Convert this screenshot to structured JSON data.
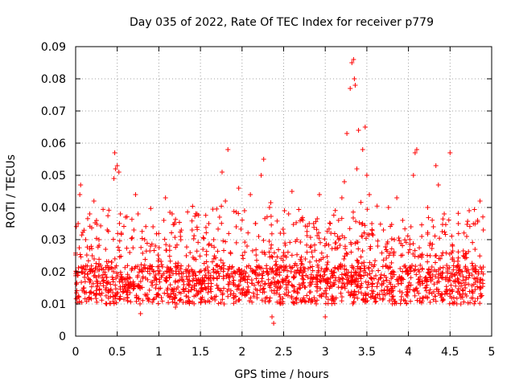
{
  "chart_data": {
    "type": "scatter",
    "title": "Day 035 of 2022, Rate Of TEC Index for receiver p779",
    "xlabel": "GPS time / hours",
    "ylabel": "ROTI / TECUs",
    "xlim": [
      0,
      5
    ],
    "ylim": [
      0,
      0.09
    ],
    "xticks": [
      0,
      0.5,
      1,
      1.5,
      2,
      2.5,
      3,
      3.5,
      4,
      4.5,
      5
    ],
    "xtick_labels": [
      "0",
      "0.5",
      "1",
      "1.5",
      "2",
      "2.5",
      "3",
      "3.5",
      "4",
      "4.5",
      "5"
    ],
    "yticks": [
      0,
      0.01,
      0.02,
      0.03,
      0.04,
      0.05,
      0.06,
      0.07,
      0.08,
      0.09
    ],
    "ytick_labels": [
      "0",
      "0.01",
      "0.02",
      "0.03",
      "0.04",
      "0.05",
      "0.06",
      "0.07",
      "0.08",
      "0.09"
    ],
    "grid": true,
    "marker": "+",
    "marker_color": "#ff0000",
    "series": [
      {
        "name": "ROTI",
        "points": [
          [
            0.02,
            0.012
          ],
          [
            0.03,
            0.035
          ],
          [
            0.05,
            0.044
          ],
          [
            0.06,
            0.047
          ],
          [
            0.08,
            0.02
          ],
          [
            0.1,
            0.015
          ],
          [
            0.12,
            0.03
          ],
          [
            0.15,
            0.018
          ],
          [
            0.17,
            0.038
          ],
          [
            0.2,
            0.025
          ],
          [
            0.22,
            0.042
          ],
          [
            0.25,
            0.013
          ],
          [
            0.28,
            0.03
          ],
          [
            0.3,
            0.022
          ],
          [
            0.33,
            0.017
          ],
          [
            0.36,
            0.027
          ],
          [
            0.38,
            0.033
          ],
          [
            0.4,
            0.014
          ],
          [
            0.43,
            0.023
          ],
          [
            0.46,
            0.049
          ],
          [
            0.47,
            0.057
          ],
          [
            0.48,
            0.052
          ],
          [
            0.5,
            0.053
          ],
          [
            0.52,
            0.051
          ],
          [
            0.55,
            0.032
          ],
          [
            0.57,
            0.018
          ],
          [
            0.6,
            0.037
          ],
          [
            0.62,
            0.012
          ],
          [
            0.65,
            0.026
          ],
          [
            0.68,
            0.021
          ],
          [
            0.7,
            0.033
          ],
          [
            0.72,
            0.044
          ],
          [
            0.75,
            0.038
          ],
          [
            0.78,
            0.007
          ],
          [
            0.8,
            0.02
          ],
          [
            0.83,
            0.03
          ],
          [
            0.86,
            0.013
          ],
          [
            0.9,
            0.028
          ],
          [
            0.93,
            0.034
          ],
          [
            0.96,
            0.019
          ],
          [
            1.0,
            0.024
          ],
          [
            1.03,
            0.012
          ],
          [
            1.06,
            0.036
          ],
          [
            1.08,
            0.043
          ],
          [
            1.1,
            0.02
          ],
          [
            1.13,
            0.028
          ],
          [
            1.16,
            0.038
          ],
          [
            1.2,
            0.009
          ],
          [
            1.23,
            0.022
          ],
          [
            1.26,
            0.031
          ],
          [
            1.3,
            0.016
          ],
          [
            1.33,
            0.025
          ],
          [
            1.36,
            0.011
          ],
          [
            1.4,
            0.033
          ],
          [
            1.43,
            0.02
          ],
          [
            1.46,
            0.038
          ],
          [
            1.5,
            0.014
          ],
          [
            1.53,
            0.027
          ],
          [
            1.56,
            0.019
          ],
          [
            1.6,
            0.035
          ],
          [
            1.63,
            0.012
          ],
          [
            1.66,
            0.03
          ],
          [
            1.7,
            0.022
          ],
          [
            1.73,
            0.037
          ],
          [
            1.76,
            0.051
          ],
          [
            1.8,
            0.042
          ],
          [
            1.83,
            0.058
          ],
          [
            1.86,
            0.026
          ],
          [
            1.9,
            0.016
          ],
          [
            1.93,
            0.034
          ],
          [
            1.96,
            0.046
          ],
          [
            2.0,
            0.013
          ],
          [
            2.03,
            0.039
          ],
          [
            2.06,
            0.028
          ],
          [
            2.1,
            0.044
          ],
          [
            2.13,
            0.02
          ],
          [
            2.16,
            0.035
          ],
          [
            2.2,
            0.031
          ],
          [
            2.23,
            0.05
          ],
          [
            2.26,
            0.055
          ],
          [
            2.3,
            0.012
          ],
          [
            2.33,
            0.04
          ],
          [
            2.36,
            0.006
          ],
          [
            2.38,
            0.004
          ],
          [
            2.4,
            0.022
          ],
          [
            2.43,
            0.017
          ],
          [
            2.46,
            0.032
          ],
          [
            2.5,
            0.026
          ],
          [
            2.53,
            0.013
          ],
          [
            2.56,
            0.038
          ],
          [
            2.6,
            0.045
          ],
          [
            2.63,
            0.02
          ],
          [
            2.66,
            0.03
          ],
          [
            2.7,
            0.015
          ],
          [
            2.73,
            0.036
          ],
          [
            2.76,
            0.024
          ],
          [
            2.8,
            0.011
          ],
          [
            2.83,
            0.028
          ],
          [
            2.86,
            0.035
          ],
          [
            2.9,
            0.019
          ],
          [
            2.93,
            0.044
          ],
          [
            2.96,
            0.013
          ],
          [
            3.0,
            0.006
          ],
          [
            3.03,
            0.023
          ],
          [
            3.06,
            0.035
          ],
          [
            3.1,
            0.016
          ],
          [
            3.13,
            0.029
          ],
          [
            3.16,
            0.036
          ],
          [
            3.2,
            0.043
          ],
          [
            3.23,
            0.048
          ],
          [
            3.26,
            0.063
          ],
          [
            3.3,
            0.077
          ],
          [
            3.32,
            0.085
          ],
          [
            3.34,
            0.086
          ],
          [
            3.35,
            0.08
          ],
          [
            3.36,
            0.078
          ],
          [
            3.38,
            0.052
          ],
          [
            3.4,
            0.064
          ],
          [
            3.42,
            0.02
          ],
          [
            3.45,
            0.058
          ],
          [
            3.48,
            0.065
          ],
          [
            3.5,
            0.05
          ],
          [
            3.53,
            0.044
          ],
          [
            3.56,
            0.035
          ],
          [
            3.6,
            0.012
          ],
          [
            3.63,
            0.028
          ],
          [
            3.66,
            0.018
          ],
          [
            3.7,
            0.033
          ],
          [
            3.73,
            0.022
          ],
          [
            3.76,
            0.04
          ],
          [
            3.8,
            0.014
          ],
          [
            3.83,
            0.03
          ],
          [
            3.86,
            0.043
          ],
          [
            3.9,
            0.021
          ],
          [
            3.93,
            0.036
          ],
          [
            3.96,
            0.011
          ],
          [
            4.0,
            0.026
          ],
          [
            4.03,
            0.034
          ],
          [
            4.06,
            0.05
          ],
          [
            4.08,
            0.057
          ],
          [
            4.1,
            0.058
          ],
          [
            4.13,
            0.02
          ],
          [
            4.16,
            0.031
          ],
          [
            4.2,
            0.015
          ],
          [
            4.23,
            0.04
          ],
          [
            4.26,
            0.025
          ],
          [
            4.3,
            0.034
          ],
          [
            4.33,
            0.053
          ],
          [
            4.36,
            0.047
          ],
          [
            4.4,
            0.013
          ],
          [
            4.43,
            0.038
          ],
          [
            4.46,
            0.022
          ],
          [
            4.5,
            0.057
          ],
          [
            4.53,
            0.028
          ],
          [
            4.56,
            0.017
          ],
          [
            4.6,
            0.035
          ],
          [
            4.63,
            0.01
          ],
          [
            4.66,
            0.025
          ],
          [
            4.7,
            0.031
          ],
          [
            4.73,
            0.039
          ],
          [
            4.76,
            0.014
          ],
          [
            4.8,
            0.027
          ],
          [
            4.83,
            0.036
          ],
          [
            4.86,
            0.042
          ],
          [
            4.88,
            0.02
          ],
          [
            4.9,
            0.033
          ]
        ]
      }
    ]
  }
}
